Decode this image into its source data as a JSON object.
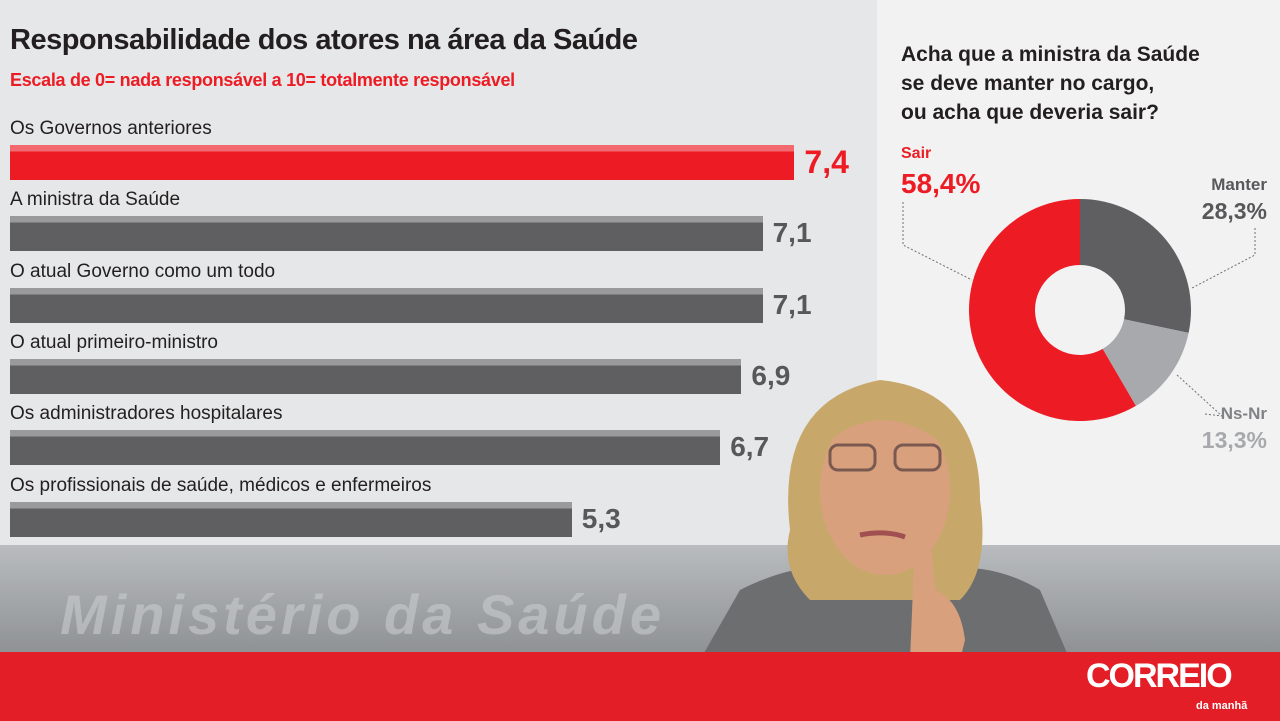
{
  "chart_data": [
    {
      "type": "bar",
      "orientation": "horizontal",
      "title": "Responsabilidade dos atores na área da Saúde",
      "subtitle": "Escala de 0= nada responsável a 10= totalmente responsável",
      "categories": [
        "Os Governos anteriores",
        "A ministra da Saúde",
        "O atual Governo como um todo",
        "O atual primeiro-ministro",
        "Os administradores hospitalares",
        "Os profissionais de saúde, médicos e enfermeiros"
      ],
      "values": [
        7.4,
        7.1,
        7.1,
        6.9,
        6.7,
        5.3
      ],
      "value_labels": [
        "7,4",
        "7,1",
        "7,1",
        "6,9",
        "6,7",
        "5,3"
      ],
      "highlight_index": 0,
      "xlim": [
        0,
        10
      ],
      "colors": {
        "highlight": "#ed1c24",
        "default": "#5f5f61"
      }
    },
    {
      "type": "pie",
      "donut": true,
      "title": "Acha que a ministra da Saúde se deve manter no cargo, ou acha que deveria sair?",
      "title_lines": [
        "Acha que a ministra da Saúde",
        "se deve manter no cargo,",
        "ou acha que deveria sair?"
      ],
      "slices": [
        {
          "label": "Manter",
          "value": 28.3,
          "value_label": "28,3%",
          "color": "#5f5f61"
        },
        {
          "label": "Ns-Nr",
          "value": 13.3,
          "value_label": "13,3%",
          "color": "#a7a9ac"
        },
        {
          "label": "Sair",
          "value": 58.4,
          "value_label": "58,4%",
          "color": "#ed1c24"
        }
      ]
    }
  ],
  "branding": {
    "logo": "CORREIO",
    "logo_sub": "da manhã",
    "band_color": "#e41e26"
  },
  "photo_text": "Ministério da Saúde"
}
